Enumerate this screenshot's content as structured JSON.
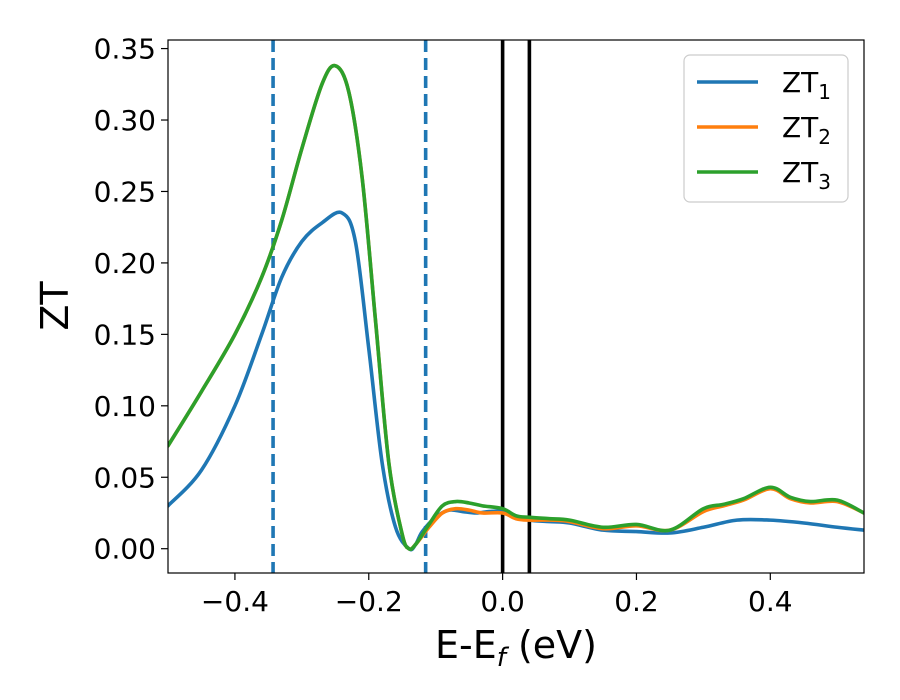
{
  "chart_data": {
    "type": "line",
    "title": "",
    "xlabel": "E-E",
    "xlabel_sub": "f",
    "xlabel_unit": " (eV)",
    "ylabel": "ZT",
    "xlim": [
      -0.5,
      0.54
    ],
    "ylim": [
      -0.017,
      0.356
    ],
    "xticks": [
      -0.4,
      -0.2,
      0.0,
      0.2,
      0.4
    ],
    "xtick_labels": [
      "−0.4",
      "−0.2",
      "0.0",
      "0.2",
      "0.4"
    ],
    "yticks": [
      0.0,
      0.05,
      0.1,
      0.15,
      0.2,
      0.25,
      0.3,
      0.35
    ],
    "ytick_labels": [
      "0.00",
      "0.05",
      "0.10",
      "0.15",
      "0.20",
      "0.25",
      "0.30",
      "0.35"
    ],
    "grid": false,
    "legend_position": "top-right",
    "vlines": [
      {
        "x": -0.343,
        "style": "dashed",
        "color": "#1f77b4"
      },
      {
        "x": -0.115,
        "style": "dashed",
        "color": "#1f77b4"
      },
      {
        "x": 0.0,
        "style": "solid",
        "color": "#000000"
      },
      {
        "x": 0.04,
        "style": "solid",
        "color": "#000000"
      }
    ],
    "series": [
      {
        "name": "ZT",
        "name_sub": "1",
        "color": "#1f77b4",
        "x": [
          -0.5,
          -0.45,
          -0.4,
          -0.36,
          -0.33,
          -0.3,
          -0.27,
          -0.24,
          -0.22,
          -0.2,
          -0.18,
          -0.16,
          -0.14,
          -0.13,
          -0.12,
          -0.1,
          -0.08,
          -0.06,
          -0.04,
          -0.02,
          0.0,
          0.02,
          0.04,
          0.07,
          0.1,
          0.15,
          0.2,
          0.25,
          0.3,
          0.35,
          0.4,
          0.45,
          0.5,
          0.54
        ],
        "y": [
          0.03,
          0.055,
          0.1,
          0.15,
          0.19,
          0.215,
          0.228,
          0.235,
          0.215,
          0.14,
          0.06,
          0.015,
          0.0,
          0.003,
          0.012,
          0.022,
          0.027,
          0.026,
          0.025,
          0.026,
          0.026,
          0.023,
          0.02,
          0.019,
          0.018,
          0.013,
          0.012,
          0.011,
          0.015,
          0.02,
          0.02,
          0.018,
          0.015,
          0.013
        ]
      },
      {
        "name": "ZT",
        "name_sub": "2",
        "color": "#ff7f0e",
        "x": [
          -0.5,
          -0.45,
          -0.4,
          -0.36,
          -0.33,
          -0.3,
          -0.27,
          -0.25,
          -0.23,
          -0.21,
          -0.19,
          -0.17,
          -0.15,
          -0.14,
          -0.13,
          -0.11,
          -0.09,
          -0.07,
          -0.05,
          -0.03,
          0.0,
          0.02,
          0.04,
          0.07,
          0.1,
          0.15,
          0.2,
          0.25,
          0.3,
          0.33,
          0.36,
          0.4,
          0.43,
          0.46,
          0.5,
          0.54
        ],
        "y": [
          0.072,
          0.11,
          0.15,
          0.19,
          0.23,
          0.28,
          0.325,
          0.338,
          0.32,
          0.26,
          0.16,
          0.06,
          0.01,
          0.0,
          0.003,
          0.015,
          0.025,
          0.028,
          0.027,
          0.025,
          0.025,
          0.021,
          0.02,
          0.02,
          0.019,
          0.014,
          0.016,
          0.013,
          0.026,
          0.03,
          0.034,
          0.042,
          0.035,
          0.032,
          0.033,
          0.025
        ]
      },
      {
        "name": "ZT",
        "name_sub": "3",
        "color": "#2ca02c",
        "x": [
          -0.5,
          -0.45,
          -0.4,
          -0.36,
          -0.33,
          -0.3,
          -0.27,
          -0.25,
          -0.23,
          -0.21,
          -0.19,
          -0.17,
          -0.15,
          -0.14,
          -0.13,
          -0.11,
          -0.09,
          -0.07,
          -0.05,
          -0.03,
          0.0,
          0.02,
          0.04,
          0.07,
          0.1,
          0.15,
          0.2,
          0.25,
          0.3,
          0.33,
          0.36,
          0.4,
          0.43,
          0.46,
          0.5,
          0.54
        ],
        "y": [
          0.072,
          0.11,
          0.15,
          0.19,
          0.23,
          0.28,
          0.325,
          0.338,
          0.32,
          0.26,
          0.16,
          0.06,
          0.01,
          0.0,
          0.003,
          0.017,
          0.03,
          0.033,
          0.032,
          0.03,
          0.028,
          0.023,
          0.022,
          0.021,
          0.02,
          0.015,
          0.017,
          0.013,
          0.028,
          0.031,
          0.035,
          0.043,
          0.036,
          0.033,
          0.034,
          0.025
        ]
      }
    ]
  }
}
